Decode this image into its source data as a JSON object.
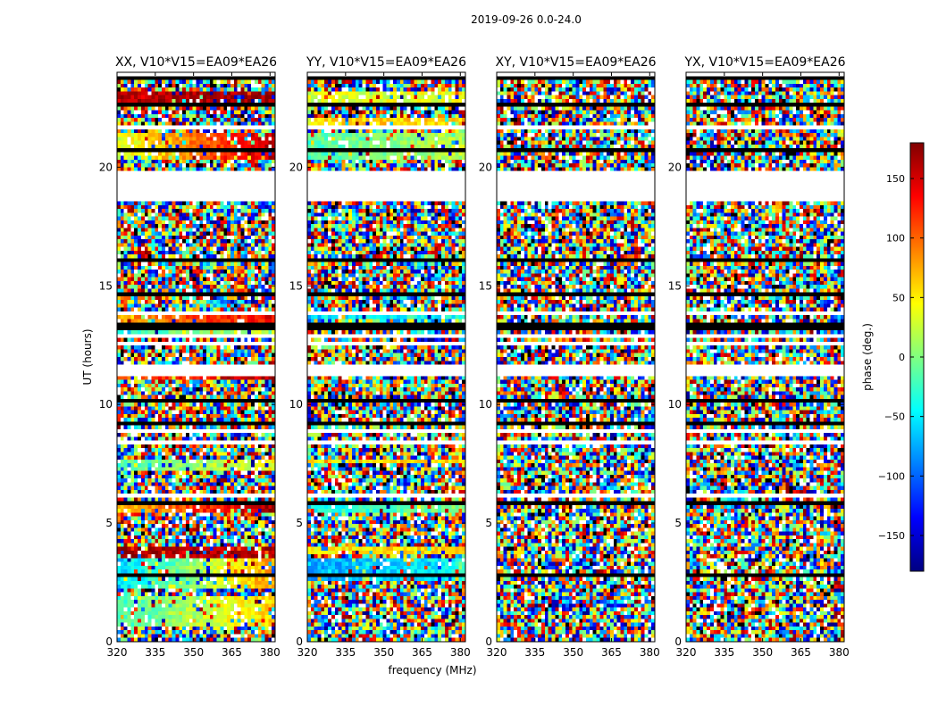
{
  "chart_data": {
    "type": "heatmap",
    "suptitle": "2019-09-26 0.0-24.0",
    "xlabel": "frequency (MHz)",
    "ylabel": "UT (hours)",
    "xlim": [
      320,
      382
    ],
    "ylim": [
      0,
      24
    ],
    "xticks": [
      320,
      335,
      350,
      365,
      380
    ],
    "yticks": [
      0,
      5,
      10,
      15,
      20
    ],
    "panels": [
      {
        "title": "XX, V10*V15=EA09*EA26",
        "structure": "coherent",
        "bands": [
          {
            "t0": 0.7,
            "t1": 1.9,
            "phase0": -20,
            "phase1": 60
          },
          {
            "t0": 2.2,
            "t1": 3.6,
            "phase0": -60,
            "phase1": 80
          },
          {
            "t0": 3.6,
            "t1": 4.0,
            "phase0": 170,
            "phase1": 160
          },
          {
            "t0": 5.5,
            "t1": 5.7,
            "phase0": 60,
            "phase1": 170
          },
          {
            "t0": 7.2,
            "t1": 7.6,
            "phase0": -20,
            "phase1": 40
          },
          {
            "t0": 11.0,
            "t1": 11.5,
            "phase0": 100,
            "phase1": 170
          },
          {
            "t0": 12.8,
            "t1": 13.1,
            "phase0": -30,
            "phase1": 30
          },
          {
            "t0": 13.4,
            "t1": 13.9,
            "phase0": 80,
            "phase1": 140
          },
          {
            "t0": 20.4,
            "t1": 21.4,
            "phase0": 30,
            "phase1": 160
          },
          {
            "t0": 22.8,
            "t1": 23.2,
            "phase0": 160,
            "phase1": 170
          }
        ]
      },
      {
        "title": "YY, V10*V15=EA09*EA26",
        "structure": "coherent",
        "bands": [
          {
            "t0": 2.5,
            "t1": 3.5,
            "phase0": -80,
            "phase1": -40
          },
          {
            "t0": 3.7,
            "t1": 4.0,
            "phase0": 50,
            "phase1": 60
          },
          {
            "t0": 5.5,
            "t1": 5.7,
            "phase0": -40,
            "phase1": 0
          },
          {
            "t0": 7.5,
            "t1": 7.7,
            "phase0": 50,
            "phase1": 60
          },
          {
            "t0": 11.2,
            "t1": 11.5,
            "phase0": 10,
            "phase1": 50
          },
          {
            "t0": 13.1,
            "t1": 13.4,
            "phase0": -150,
            "phase1": -120
          },
          {
            "t0": 13.6,
            "t1": 13.9,
            "phase0": -60,
            "phase1": -40
          },
          {
            "t0": 20.3,
            "t1": 21.4,
            "phase0": -20,
            "phase1": 20
          },
          {
            "t0": 21.6,
            "t1": 22.0,
            "phase0": 60,
            "phase1": 60
          },
          {
            "t0": 22.8,
            "t1": 23.2,
            "phase0": 30,
            "phase1": 40
          }
        ]
      },
      {
        "title": "XY, V10*V15=EA09*EA26",
        "structure": "noise",
        "bands": []
      },
      {
        "title": "YX, V10*V15=EA09*EA26",
        "structure": "noise",
        "bands": []
      }
    ],
    "flagged_gaps": [
      [
        18.6,
        19.7
      ]
    ],
    "colorbar": {
      "label": "phase (deg.)",
      "range": [
        -180,
        180
      ],
      "ticks": [
        150,
        100,
        50,
        0,
        -50,
        -100,
        -150
      ],
      "tick_labels": [
        "150",
        "100",
        "50",
        "0",
        "−50",
        "−100",
        "−150"
      ],
      "colormap": "jet",
      "colors": [
        "#000080",
        "#0000ff",
        "#0080ff",
        "#00ffff",
        "#80ff80",
        "#ffff00",
        "#ff8000",
        "#ff0000",
        "#800000"
      ]
    }
  }
}
